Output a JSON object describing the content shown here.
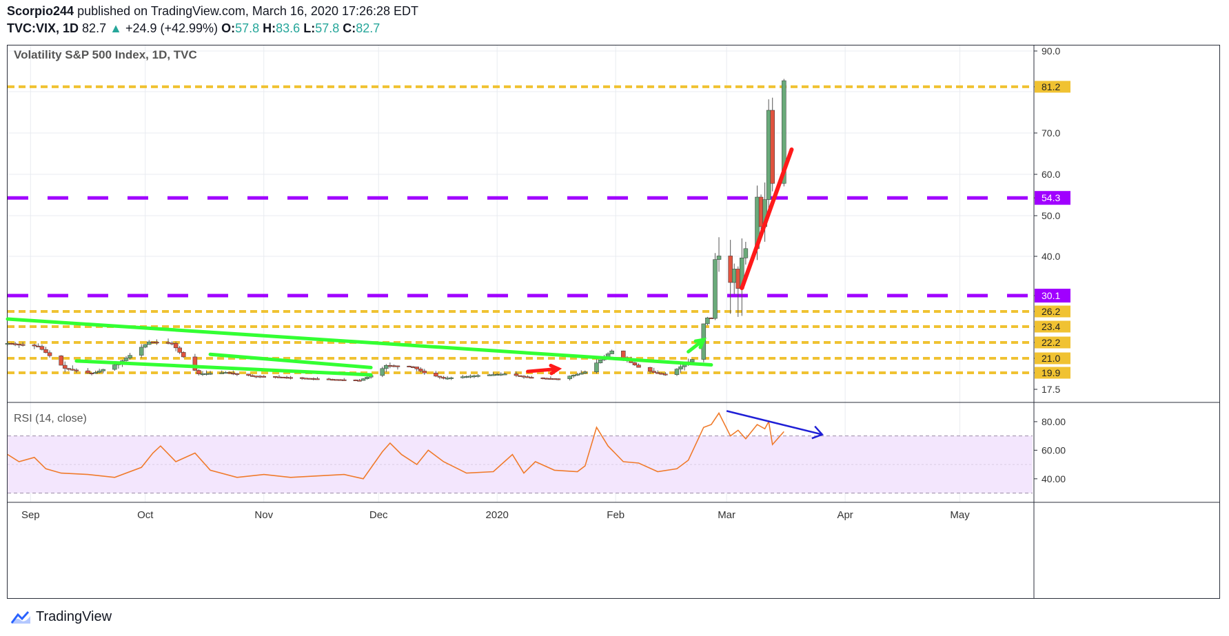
{
  "header": {
    "author": "Scorpio244",
    "published_text": "published on TradingView.com, March 16, 2020 17:26:28 EDT",
    "symbol": "TVC:VIX, 1D",
    "last": "82.7",
    "change": "+24.9 (+42.99%)",
    "o_label": "O:",
    "o_value": "57.8",
    "h_label": "H:",
    "h_value": "83.6",
    "l_label": "L:",
    "l_value": "57.8",
    "c_label": "C:",
    "c_value": "82.7"
  },
  "footer": {
    "brand": "TradingView"
  },
  "colors": {
    "up": "#26a69a",
    "up_candle": "#6aaa7a",
    "down_candle": "#e0533f",
    "gold": "#f0c232",
    "purple": "#a000ff",
    "green_trend": "#33ff33",
    "red_trend": "#ff1a1a",
    "rsi_line": "#f07a2a",
    "rsi_band": "#f3e6fd",
    "blue_arrow": "#1f1fd6"
  },
  "chart_data": [
    {
      "type": "candlestick",
      "title": "Volatility S&P 500 Index, 1D, TVC",
      "ylim": [
        15,
        92
      ],
      "y_ticks": [
        "17.5",
        "19.9",
        "21.0",
        "22.2",
        "23.4",
        "26.2",
        "30.1",
        "40.0",
        "50.0",
        "54.3",
        "60.0",
        "70.0",
        "81.2",
        "90.0"
      ],
      "grid_ticks": [
        40,
        50,
        60,
        70,
        80,
        90
      ],
      "x_labels": [
        "Sep",
        "Oct",
        "Nov",
        "Dec",
        "2020",
        "Feb",
        "Mar",
        "Apr",
        "May"
      ],
      "x_label_dates": [
        "2019-09-01",
        "2019-10-01",
        "2019-11-01",
        "2019-12-01",
        "2020-01-01",
        "2020-02-01",
        "2020-03-01",
        "2020-04-01",
        "2020-05-01"
      ],
      "x_range": [
        "2019-08-26",
        "2020-05-20"
      ],
      "horizontal_levels": [
        {
          "value": 81.2,
          "label": "81.2",
          "color": "#f0c232",
          "style": "dashed"
        },
        {
          "value": 54.3,
          "label": "54.3",
          "color": "#a000ff",
          "style": "long-dash"
        },
        {
          "value": 30.1,
          "label": "30.1",
          "color": "#a000ff",
          "style": "long-dash"
        },
        {
          "value": 26.2,
          "label": "26.2",
          "color": "#f0c232",
          "style": "dashed"
        },
        {
          "value": 23.4,
          "label": "23.4",
          "color": "#f0c232",
          "style": "dashed"
        },
        {
          "value": 22.2,
          "label": "22.2",
          "color": "#f0c232",
          "style": "dashed"
        },
        {
          "value": 21.0,
          "label": "21.0",
          "color": "#f0c232",
          "style": "dashed"
        },
        {
          "value": 19.9,
          "label": "19.9",
          "color": "#f0c232",
          "style": "dashed"
        }
      ],
      "price_path": [
        [
          "2019-08-26",
          20.3
        ],
        [
          "2019-09-03",
          19.7
        ],
        [
          "2019-09-10",
          15.3
        ],
        [
          "2019-09-17",
          14.2
        ],
        [
          "2019-09-24",
          16.3
        ],
        [
          "2019-10-02",
          20.6
        ],
        [
          "2019-10-08",
          20.3
        ],
        [
          "2019-10-15",
          14.0
        ],
        [
          "2019-10-22",
          14.5
        ],
        [
          "2019-10-29",
          13.2
        ],
        [
          "2019-11-05",
          12.8
        ],
        [
          "2019-11-15",
          12.1
        ],
        [
          "2019-11-26",
          11.5
        ],
        [
          "2019-12-03",
          15.9
        ],
        [
          "2019-12-10",
          15.6
        ],
        [
          "2019-12-18",
          12.3
        ],
        [
          "2019-12-27",
          13.4
        ],
        [
          "2020-01-03",
          14.0
        ],
        [
          "2020-01-10",
          12.5
        ],
        [
          "2020-01-17",
          12.1
        ],
        [
          "2020-01-24",
          14.6
        ],
        [
          "2020-01-31",
          18.8
        ],
        [
          "2020-02-07",
          15.5
        ],
        [
          "2020-02-14",
          13.7
        ],
        [
          "2020-02-21",
          17.1
        ],
        [
          "2020-02-24",
          25.0
        ],
        [
          "2020-02-25",
          27.9
        ],
        [
          "2020-02-26",
          27.6
        ],
        [
          "2020-02-27",
          39.2
        ],
        [
          "2020-02-28",
          40.1
        ],
        [
          "2020-03-02",
          33.4
        ],
        [
          "2020-03-03",
          36.8
        ],
        [
          "2020-03-04",
          31.9
        ],
        [
          "2020-03-05",
          39.6
        ],
        [
          "2020-03-06",
          41.9
        ],
        [
          "2020-03-09",
          54.5
        ],
        [
          "2020-03-10",
          47.3
        ],
        [
          "2020-03-11",
          53.9
        ],
        [
          "2020-03-12",
          75.5
        ],
        [
          "2020-03-13",
          57.8
        ],
        [
          "2020-03-16",
          82.7
        ]
      ],
      "annotations": [
        {
          "type": "green-trendline",
          "from": [
            "2019-08-26",
            24.8
          ],
          "to": [
            "2020-02-26",
            20.5
          ]
        },
        {
          "type": "green-trendline",
          "from": [
            "2019-09-13",
            20.8
          ],
          "to": [
            "2019-11-29",
            19.6
          ]
        },
        {
          "type": "green-trendline",
          "from": [
            "2019-10-18",
            21.3
          ],
          "to": [
            "2019-11-29",
            20.3
          ]
        },
        {
          "type": "green-arrow",
          "from": [
            "2020-02-20",
            21.5
          ],
          "to": [
            "2020-02-24",
            22.4
          ]
        },
        {
          "type": "red-arrow",
          "from": [
            "2020-01-09",
            20.0
          ],
          "to": [
            "2020-01-17",
            20.2
          ]
        },
        {
          "type": "red-trendline",
          "from": [
            "2020-03-05",
            32.0
          ],
          "to": [
            "2020-03-18",
            66.0
          ]
        }
      ]
    },
    {
      "type": "line",
      "title": "RSI (14, close)",
      "ylim": [
        24,
        93
      ],
      "y_ticks": [
        "40.00",
        "60.00",
        "80.00"
      ],
      "band": [
        30,
        70
      ],
      "values": [
        [
          "2019-08-26",
          57
        ],
        [
          "2019-08-29",
          52
        ],
        [
          "2019-09-02",
          55
        ],
        [
          "2019-09-05",
          47
        ],
        [
          "2019-09-09",
          44
        ],
        [
          "2019-09-16",
          43
        ],
        [
          "2019-09-23",
          41
        ],
        [
          "2019-09-30",
          48
        ],
        [
          "2019-10-03",
          58
        ],
        [
          "2019-10-05",
          63
        ],
        [
          "2019-10-09",
          52
        ],
        [
          "2019-10-14",
          58
        ],
        [
          "2019-10-18",
          46
        ],
        [
          "2019-10-25",
          41
        ],
        [
          "2019-11-01",
          43
        ],
        [
          "2019-11-08",
          41
        ],
        [
          "2019-11-15",
          42
        ],
        [
          "2019-11-22",
          43
        ],
        [
          "2019-11-27",
          40
        ],
        [
          "2019-12-02",
          59
        ],
        [
          "2019-12-04",
          65
        ],
        [
          "2019-12-07",
          57
        ],
        [
          "2019-12-11",
          50
        ],
        [
          "2019-12-14",
          60
        ],
        [
          "2019-12-18",
          52
        ],
        [
          "2019-12-24",
          44
        ],
        [
          "2019-12-31",
          45
        ],
        [
          "2020-01-05",
          57
        ],
        [
          "2020-01-08",
          44
        ],
        [
          "2020-01-11",
          52
        ],
        [
          "2020-01-16",
          46
        ],
        [
          "2020-01-22",
          45
        ],
        [
          "2020-01-24",
          49
        ],
        [
          "2020-01-27",
          76
        ],
        [
          "2020-01-30",
          63
        ],
        [
          "2020-02-03",
          52
        ],
        [
          "2020-02-07",
          51
        ],
        [
          "2020-02-12",
          45
        ],
        [
          "2020-02-17",
          47
        ],
        [
          "2020-02-20",
          53
        ],
        [
          "2020-02-24",
          76
        ],
        [
          "2020-02-26",
          78
        ],
        [
          "2020-02-28",
          86
        ],
        [
          "2020-03-02",
          70
        ],
        [
          "2020-03-04",
          74
        ],
        [
          "2020-03-06",
          68
        ],
        [
          "2020-03-09",
          78
        ],
        [
          "2020-03-11",
          75
        ],
        [
          "2020-03-12",
          80
        ],
        [
          "2020-03-13",
          64
        ],
        [
          "2020-03-16",
          73
        ]
      ],
      "annotations": [
        {
          "type": "blue-arrow",
          "from": [
            "2020-03-01",
            87.5
          ],
          "to": [
            "2020-03-26",
            71.0
          ]
        }
      ]
    }
  ]
}
